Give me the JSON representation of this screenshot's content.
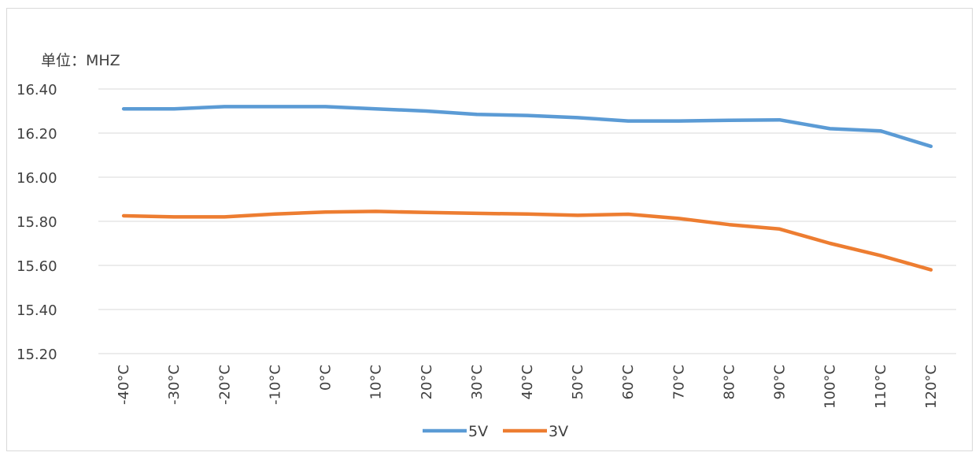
{
  "chart_data": {
    "type": "line",
    "unit_label": "单位：MHZ",
    "categories": [
      "-40°C",
      "-30°C",
      "-20°C",
      "-10°C",
      "0°C",
      "10°C",
      "20°C",
      "30°C",
      "40°C",
      "50°C",
      "60°C",
      "70°C",
      "80°C",
      "90°C",
      "100°C",
      "110°C",
      "120°C"
    ],
    "ylim": [
      15.2,
      16.4
    ],
    "yticks": [
      "15.20",
      "15.40",
      "15.60",
      "15.80",
      "16.00",
      "16.20",
      "16.40"
    ],
    "grid": true,
    "legend_position": "bottom",
    "series": [
      {
        "name": "5V",
        "color": "#5b9bd5",
        "values": [
          16.31,
          16.31,
          16.32,
          16.32,
          16.32,
          16.31,
          16.3,
          16.285,
          16.28,
          16.27,
          16.255,
          16.255,
          16.258,
          16.26,
          16.22,
          16.21,
          16.14
        ]
      },
      {
        "name": "3V",
        "color": "#ed7d31",
        "values": [
          15.825,
          15.82,
          15.82,
          15.833,
          15.842,
          15.845,
          15.84,
          15.836,
          15.833,
          15.827,
          15.832,
          15.813,
          15.785,
          15.765,
          15.7,
          15.645,
          15.58
        ]
      }
    ]
  }
}
